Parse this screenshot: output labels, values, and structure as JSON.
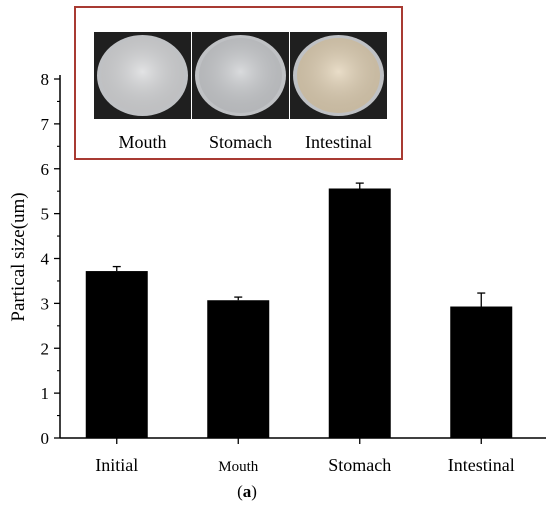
{
  "chart_data": {
    "type": "bar",
    "categories": [
      "Initial",
      "Mouth",
      "Stomach",
      "Intestinal"
    ],
    "values": [
      3.72,
      3.07,
      5.56,
      2.93
    ],
    "errors": [
      0.1,
      0.07,
      0.12,
      0.3
    ],
    "ylabel": "Partical size(um)",
    "xlabel": "",
    "ylim": [
      0,
      8
    ],
    "yticks": [
      "0",
      "1",
      "2",
      "3",
      "4",
      "5",
      "6",
      "7",
      "8"
    ],
    "bar_color": "#000000",
    "grid": false
  },
  "inset": {
    "frame_color": "#a83a32",
    "labels": [
      "Mouth",
      "Stomach",
      "Intestinal"
    ],
    "dish_colors": [
      "#d9dadc",
      "#cdcfd2",
      "#e2d2b6"
    ],
    "background_color": "#1f1f1f"
  },
  "caption": {
    "open": "(",
    "letter": "a",
    "close": ")"
  }
}
